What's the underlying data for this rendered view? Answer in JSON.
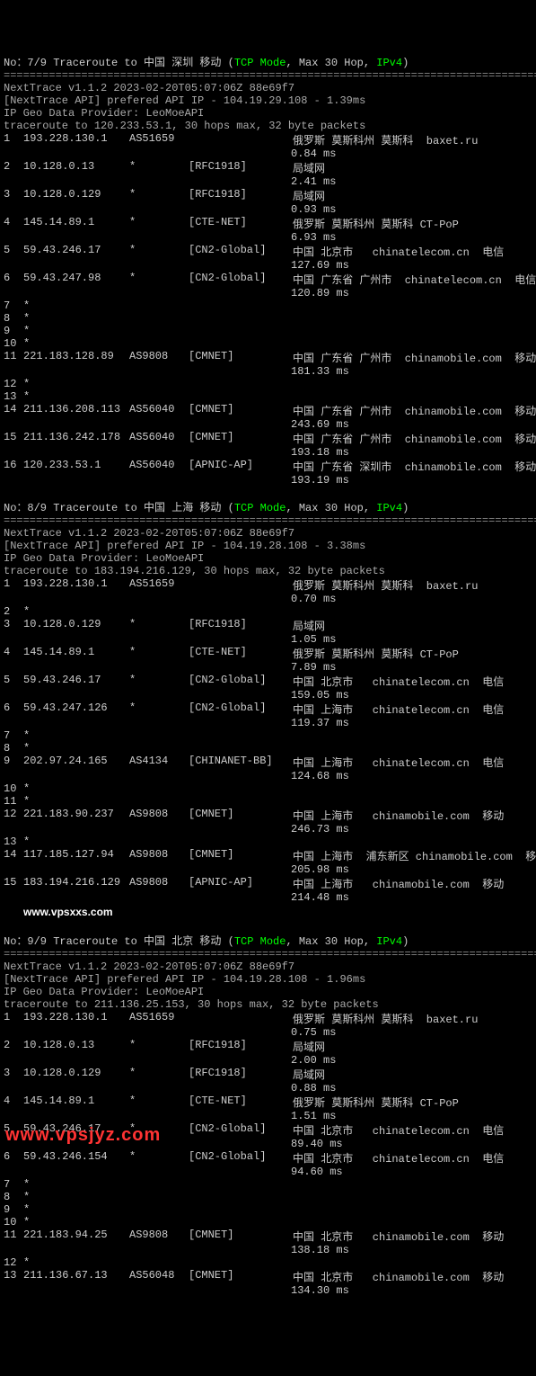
{
  "separator": "========================================================================================",
  "sections": [
    {
      "header": {
        "prefix": "No：7/9 Traceroute to ",
        "dest": "中国 深圳 移动",
        "mid": " (",
        "mode": "TCP Mode",
        "mid2": ", Max 30 Hop, ",
        "proto": "IPv4",
        "suffix": ")"
      },
      "info": [
        "NextTrace v1.1.2 2023-02-20T05:07:06Z 88e69f7",
        "[NextTrace API] prefered API IP - 104.19.29.108 - 1.39ms",
        "IP Geo Data Provider: LeoMoeAPI",
        "traceroute to 120.233.53.1, 30 hops max, 32 byte packets"
      ],
      "hops": [
        {
          "n": "1",
          "ip": "193.228.130.1",
          "as": "AS51659",
          "net": "",
          "loc": "俄罗斯 莫斯科州 莫斯科  baxet.ru",
          "ms": "0.84 ms"
        },
        {
          "n": "2",
          "ip": "10.128.0.13",
          "as": "*",
          "net": "[RFC1918]",
          "loc": "局域网",
          "ms": "2.41 ms"
        },
        {
          "n": "3",
          "ip": "10.128.0.129",
          "as": "*",
          "net": "[RFC1918]",
          "loc": "局域网",
          "ms": "0.93 ms"
        },
        {
          "n": "4",
          "ip": "145.14.89.1",
          "as": "*",
          "net": "[CTE-NET]",
          "loc": "俄罗斯 莫斯科州 莫斯科 CT-PoP",
          "ms": "6.93 ms"
        },
        {
          "n": "5",
          "ip": "59.43.246.17",
          "as": "*",
          "net": "[CN2-Global]",
          "loc": "中国 北京市   chinatelecom.cn  电信",
          "ms": "127.69 ms"
        },
        {
          "n": "6",
          "ip": "59.43.247.98",
          "as": "*",
          "net": "[CN2-Global]",
          "loc": "中国 广东省 广州市  chinatelecom.cn  电信",
          "ms": "120.89 ms"
        },
        {
          "n": "7",
          "ip": "*",
          "as": "",
          "net": "",
          "loc": "",
          "ms": ""
        },
        {
          "n": "8",
          "ip": "*",
          "as": "",
          "net": "",
          "loc": "",
          "ms": ""
        },
        {
          "n": "9",
          "ip": "*",
          "as": "",
          "net": "",
          "loc": "",
          "ms": ""
        },
        {
          "n": "10",
          "ip": "*",
          "as": "",
          "net": "",
          "loc": "",
          "ms": ""
        },
        {
          "n": "11",
          "ip": "221.183.128.89",
          "as": "AS9808",
          "net": "[CMNET]",
          "loc": "中国 广东省 广州市  chinamobile.com  移动",
          "ms": "181.33 ms"
        },
        {
          "n": "12",
          "ip": "*",
          "as": "",
          "net": "",
          "loc": "",
          "ms": ""
        },
        {
          "n": "13",
          "ip": "*",
          "as": "",
          "net": "",
          "loc": "",
          "ms": ""
        },
        {
          "n": "14",
          "ip": "211.136.208.113",
          "as": "AS56040",
          "net": "[CMNET]",
          "loc": "中国 广东省 广州市  chinamobile.com  移动",
          "ms": "243.69 ms"
        },
        {
          "n": "15",
          "ip": "211.136.242.178",
          "as": "AS56040",
          "net": "[CMNET]",
          "loc": "中国 广东省 广州市  chinamobile.com  移动",
          "ms": "193.18 ms"
        },
        {
          "n": "16",
          "ip": "120.233.53.1",
          "as": "AS56040",
          "net": "[APNIC-AP]",
          "loc": "中国 广东省 深圳市  chinamobile.com  移动",
          "ms": "193.19 ms"
        }
      ]
    },
    {
      "header": {
        "prefix": "No：8/9 Traceroute to ",
        "dest": "中国 上海 移动",
        "mid": " (",
        "mode": "TCP Mode",
        "mid2": ", Max 30 Hop, ",
        "proto": "IPv4",
        "suffix": ")"
      },
      "info": [
        "NextTrace v1.1.2 2023-02-20T05:07:06Z 88e69f7",
        "[NextTrace API] prefered API IP - 104.19.28.108 - 3.38ms",
        "IP Geo Data Provider: LeoMoeAPI",
        "traceroute to 183.194.216.129, 30 hops max, 32 byte packets"
      ],
      "hops": [
        {
          "n": "1",
          "ip": "193.228.130.1",
          "as": "AS51659",
          "net": "",
          "loc": "俄罗斯 莫斯科州 莫斯科  baxet.ru",
          "ms": "0.70 ms"
        },
        {
          "n": "2",
          "ip": "*",
          "as": "",
          "net": "",
          "loc": "",
          "ms": ""
        },
        {
          "n": "3",
          "ip": "10.128.0.129",
          "as": "*",
          "net": "[RFC1918]",
          "loc": "局域网",
          "ms": "1.05 ms"
        },
        {
          "n": "4",
          "ip": "145.14.89.1",
          "as": "*",
          "net": "[CTE-NET]",
          "loc": "俄罗斯 莫斯科州 莫斯科 CT-PoP",
          "ms": "7.89 ms"
        },
        {
          "n": "5",
          "ip": "59.43.246.17",
          "as": "*",
          "net": "[CN2-Global]",
          "loc": "中国 北京市   chinatelecom.cn  电信",
          "ms": "159.05 ms"
        },
        {
          "n": "6",
          "ip": "59.43.247.126",
          "as": "*",
          "net": "[CN2-Global]",
          "loc": "中国 上海市   chinatelecom.cn  电信",
          "ms": "119.37 ms"
        },
        {
          "n": "7",
          "ip": "*",
          "as": "",
          "net": "",
          "loc": "",
          "ms": ""
        },
        {
          "n": "8",
          "ip": "*",
          "as": "",
          "net": "",
          "loc": "",
          "ms": ""
        },
        {
          "n": "9",
          "ip": "202.97.24.165",
          "as": "AS4134",
          "net": "[CHINANET-BB]",
          "loc": "中国 上海市   chinatelecom.cn  电信",
          "ms": "124.68 ms"
        },
        {
          "n": "10",
          "ip": "*",
          "as": "",
          "net": "",
          "loc": "",
          "ms": ""
        },
        {
          "n": "11",
          "ip": "*",
          "as": "",
          "net": "",
          "loc": "",
          "ms": ""
        },
        {
          "n": "12",
          "ip": "221.183.90.237",
          "as": "AS9808",
          "net": "[CMNET]",
          "loc": "中国 上海市   chinamobile.com  移动",
          "ms": "246.73 ms"
        },
        {
          "n": "13",
          "ip": "*",
          "as": "",
          "net": "",
          "loc": "",
          "ms": ""
        },
        {
          "n": "14",
          "ip": "117.185.127.94",
          "as": "AS9808",
          "net": "[CMNET]",
          "loc": "中国 上海市  浦东新区 chinamobile.com  移动",
          "ms": "205.98 ms"
        },
        {
          "n": "15",
          "ip": "183.194.216.129",
          "as": "AS9808",
          "net": "[APNIC-AP]",
          "loc": "中国 上海市   chinamobile.com  移动",
          "ms": "214.48 ms"
        }
      ],
      "watermark": "www.vpsxxs.com"
    },
    {
      "header": {
        "prefix": "No：9/9 Traceroute to ",
        "dest": "中国 北京 移动",
        "mid": " (",
        "mode": "TCP Mode",
        "mid2": ", Max 30 Hop, ",
        "proto": "IPv4",
        "suffix": ")"
      },
      "info": [
        "NextTrace v1.1.2 2023-02-20T05:07:06Z 88e69f7",
        "[NextTrace API] prefered API IP - 104.19.28.108 - 1.96ms",
        "IP Geo Data Provider: LeoMoeAPI",
        "traceroute to 211.136.25.153, 30 hops max, 32 byte packets"
      ],
      "hops": [
        {
          "n": "1",
          "ip": "193.228.130.1",
          "as": "AS51659",
          "net": "",
          "loc": "俄罗斯 莫斯科州 莫斯科  baxet.ru",
          "ms": "0.75 ms"
        },
        {
          "n": "2",
          "ip": "10.128.0.13",
          "as": "*",
          "net": "[RFC1918]",
          "loc": "局域网",
          "ms": "2.00 ms"
        },
        {
          "n": "3",
          "ip": "10.128.0.129",
          "as": "*",
          "net": "[RFC1918]",
          "loc": "局域网",
          "ms": "0.88 ms"
        },
        {
          "n": "4",
          "ip": "145.14.89.1",
          "as": "*",
          "net": "[CTE-NET]",
          "loc": "俄罗斯 莫斯科州 莫斯科 CT-PoP",
          "ms": "1.51 ms"
        },
        {
          "n": "5",
          "ip": "59.43.246.17",
          "as": "*",
          "net": "[CN2-Global]",
          "loc": "中国 北京市   chinatelecom.cn  电信",
          "ms": "89.40 ms"
        },
        {
          "n": "6",
          "ip": "59.43.246.154",
          "as": "*",
          "net": "[CN2-Global]",
          "loc": "中国 北京市   chinatelecom.cn  电信",
          "ms": "94.60 ms"
        },
        {
          "n": "7",
          "ip": "*",
          "as": "",
          "net": "",
          "loc": "",
          "ms": ""
        },
        {
          "n": "8",
          "ip": "*",
          "as": "",
          "net": "",
          "loc": "",
          "ms": ""
        },
        {
          "n": "9",
          "ip": "*",
          "as": "",
          "net": "",
          "loc": "",
          "ms": ""
        },
        {
          "n": "10",
          "ip": "*",
          "as": "",
          "net": "",
          "loc": "",
          "ms": ""
        },
        {
          "n": "11",
          "ip": "221.183.94.25",
          "as": "AS9808",
          "net": "[CMNET]",
          "loc": "中国 北京市   chinamobile.com  移动",
          "ms": "138.18 ms"
        },
        {
          "n": "12",
          "ip": "*",
          "as": "",
          "net": "",
          "loc": "",
          "ms": ""
        },
        {
          "n": "13",
          "ip": "211.136.67.13",
          "as": "AS56048",
          "net": "[CMNET]",
          "loc": "中国 北京市   chinamobile.com  移动",
          "ms": "134.30 ms"
        }
      ]
    }
  ],
  "bottomWatermark": "www.vpsjyz.com"
}
